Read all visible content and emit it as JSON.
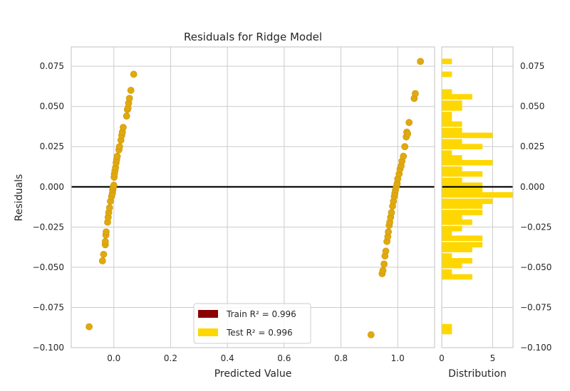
{
  "chart_data": [
    {
      "type": "scatter",
      "title": "Residuals for Ridge Model",
      "xlabel": "Predicted Value",
      "ylabel": "Residuals",
      "xlim": [
        -0.15,
        1.13
      ],
      "ylim": [
        -0.1,
        0.087
      ],
      "xticks": [
        0.0,
        0.2,
        0.4,
        0.6,
        0.8,
        1.0
      ],
      "xtick_labels": [
        "0.0",
        "0.2",
        "0.4",
        "0.6",
        "0.8",
        "1.0"
      ],
      "yticks": [
        -0.1,
        -0.075,
        -0.05,
        -0.025,
        0.0,
        0.025,
        0.05,
        0.075
      ],
      "ytick_labels": [
        "−0.100",
        "−0.075",
        "−0.050",
        "−0.025",
        "0.000",
        "0.025",
        "0.050",
        "0.075"
      ],
      "grid": true,
      "zero_line": 0,
      "legend_position": "lower center",
      "legend": [
        {
          "label": "Train R² = 0.996",
          "color": "#8b0000"
        },
        {
          "label": "Test R² = 0.996",
          "color": "#ffd700"
        }
      ],
      "series": [
        {
          "name": "Test R² = 0.996",
          "color": "#e0a90e",
          "points": [
            [
              -0.087,
              -0.087
            ],
            [
              -0.04,
              -0.046
            ],
            [
              -0.036,
              -0.042
            ],
            [
              -0.03,
              -0.036
            ],
            [
              -0.03,
              -0.034
            ],
            [
              -0.028,
              -0.03
            ],
            [
              -0.027,
              -0.028
            ],
            [
              -0.022,
              -0.022
            ],
            [
              -0.02,
              -0.019
            ],
            [
              -0.018,
              -0.016
            ],
            [
              -0.015,
              -0.013
            ],
            [
              -0.012,
              -0.009
            ],
            [
              -0.008,
              -0.006
            ],
            [
              -0.005,
              -0.004
            ],
            [
              -0.004,
              -0.002
            ],
            [
              -0.003,
              -0.001
            ],
            [
              -0.002,
              0.0
            ],
            [
              0.0,
              0.001
            ],
            [
              0.001,
              0.006
            ],
            [
              0.002,
              0.008
            ],
            [
              0.004,
              0.01
            ],
            [
              0.006,
              0.012
            ],
            [
              0.008,
              0.015
            ],
            [
              0.01,
              0.017
            ],
            [
              0.012,
              0.019
            ],
            [
              0.018,
              0.023
            ],
            [
              0.02,
              0.025
            ],
            [
              0.025,
              0.029
            ],
            [
              0.028,
              0.032
            ],
            [
              0.03,
              0.034
            ],
            [
              0.033,
              0.037
            ],
            [
              0.045,
              0.044
            ],
            [
              0.048,
              0.048
            ],
            [
              0.05,
              0.049
            ],
            [
              0.052,
              0.052
            ],
            [
              0.055,
              0.055
            ],
            [
              0.06,
              0.06
            ],
            [
              0.07,
              0.07
            ],
            [
              0.906,
              -0.092
            ],
            [
              0.945,
              -0.054
            ],
            [
              0.948,
              -0.052
            ],
            [
              0.952,
              -0.048
            ],
            [
              0.955,
              -0.043
            ],
            [
              0.958,
              -0.04
            ],
            [
              0.962,
              -0.034
            ],
            [
              0.965,
              -0.031
            ],
            [
              0.967,
              -0.028
            ],
            [
              0.97,
              -0.024
            ],
            [
              0.972,
              -0.022
            ],
            [
              0.975,
              -0.019
            ],
            [
              0.978,
              -0.016
            ],
            [
              0.982,
              -0.012
            ],
            [
              0.985,
              -0.009
            ],
            [
              0.988,
              -0.006
            ],
            [
              0.99,
              -0.004
            ],
            [
              0.992,
              -0.002
            ],
            [
              0.995,
              0.0
            ],
            [
              0.998,
              0.002
            ],
            [
              1.0,
              0.005
            ],
            [
              1.005,
              0.008
            ],
            [
              1.008,
              0.011
            ],
            [
              1.012,
              0.013
            ],
            [
              1.015,
              0.016
            ],
            [
              1.02,
              0.019
            ],
            [
              1.025,
              0.025
            ],
            [
              1.03,
              0.031
            ],
            [
              1.032,
              0.034
            ],
            [
              1.035,
              0.033
            ],
            [
              1.04,
              0.04
            ],
            [
              1.058,
              0.055
            ],
            [
              1.062,
              0.058
            ],
            [
              1.08,
              0.078
            ]
          ]
        }
      ]
    },
    {
      "type": "bar",
      "orientation": "horizontal",
      "xlabel": "Distribution",
      "xlim": [
        0,
        7
      ],
      "xticks": [
        0,
        5
      ],
      "xtick_labels": [
        "0",
        "5"
      ],
      "yticks": [
        -0.1,
        -0.075,
        -0.05,
        -0.025,
        0.0,
        0.025,
        0.05,
        0.075
      ],
      "ytick_labels": [
        "−0.100",
        "−0.075",
        "−0.050",
        "−0.025",
        "0.000",
        "0.025",
        "0.050",
        "0.075"
      ],
      "color": "#ffd700",
      "bin_width": 0.0034,
      "bins": [
        {
          "y": 0.078,
          "count": 1
        },
        {
          "y": 0.07,
          "count": 1
        },
        {
          "y": 0.059,
          "count": 1
        },
        {
          "y": 0.056,
          "count": 3
        },
        {
          "y": 0.052,
          "count": 2
        },
        {
          "y": 0.049,
          "count": 2
        },
        {
          "y": 0.045,
          "count": 1
        },
        {
          "y": 0.042,
          "count": 1
        },
        {
          "y": 0.039,
          "count": 2
        },
        {
          "y": 0.035,
          "count": 2
        },
        {
          "y": 0.032,
          "count": 5
        },
        {
          "y": 0.028,
          "count": 2
        },
        {
          "y": 0.025,
          "count": 4
        },
        {
          "y": 0.021,
          "count": 1
        },
        {
          "y": 0.018,
          "count": 2
        },
        {
          "y": 0.015,
          "count": 5
        },
        {
          "y": 0.011,
          "count": 2
        },
        {
          "y": 0.008,
          "count": 4
        },
        {
          "y": 0.004,
          "count": 2
        },
        {
          "y": 0.001,
          "count": 4
        },
        {
          "y": -0.002,
          "count": 4
        },
        {
          "y": -0.005,
          "count": 7
        },
        {
          "y": -0.009,
          "count": 5
        },
        {
          "y": -0.012,
          "count": 4
        },
        {
          "y": -0.016,
          "count": 4
        },
        {
          "y": -0.019,
          "count": 2
        },
        {
          "y": -0.022,
          "count": 3
        },
        {
          "y": -0.026,
          "count": 2
        },
        {
          "y": -0.029,
          "count": 1
        },
        {
          "y": -0.032,
          "count": 4
        },
        {
          "y": -0.036,
          "count": 4
        },
        {
          "y": -0.039,
          "count": 3
        },
        {
          "y": -0.043,
          "count": 1
        },
        {
          "y": -0.046,
          "count": 3
        },
        {
          "y": -0.049,
          "count": 2
        },
        {
          "y": -0.053,
          "count": 1
        },
        {
          "y": -0.056,
          "count": 3
        },
        {
          "y": -0.087,
          "count": 1
        },
        {
          "y": -0.09,
          "count": 1
        }
      ]
    }
  ]
}
